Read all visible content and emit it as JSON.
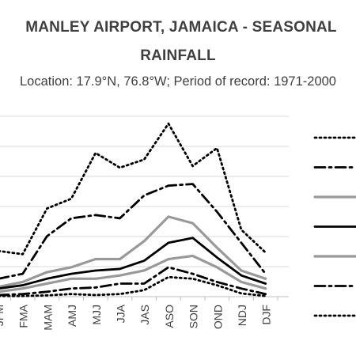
{
  "chart_data": {
    "type": "line",
    "title": "MANLEY AIRPORT, JAMAICA - SEASONAL RAINFALL",
    "title_lines": [
      "MANLEY AIRPORT, JAMAICA - SEASONAL",
      "RAINFALL"
    ],
    "subtitle": "Location: 17.9°N, 76.8°W; Period of record: 1971-2000",
    "categories": [
      "JFM",
      "FMA",
      "MAM",
      "AMJ",
      "MJJ",
      "JJA",
      "JAS",
      "ASO",
      "SON",
      "OND",
      "NDJ",
      "DJF"
    ],
    "ylim": [
      0,
      550
    ],
    "grid": true,
    "legend_position": "right",
    "series": [
      {
        "values": [
          140,
          130,
          270,
          300,
          440,
          395,
          420,
          530,
          400,
          455,
          205,
          135
        ],
        "color": "#000000",
        "style": "dotted"
      },
      {
        "values": [
          55,
          70,
          185,
          240,
          250,
          240,
          310,
          340,
          345,
          260,
          165,
          70
        ],
        "color": "#000000",
        "style": "dashdot"
      },
      {
        "values": [
          30,
          45,
          75,
          90,
          115,
          115,
          170,
          245,
          225,
          150,
          80,
          55
        ],
        "color": "#999999",
        "style": "solid"
      },
      {
        "values": [
          25,
          35,
          55,
          70,
          80,
          85,
          110,
          165,
          180,
          120,
          65,
          40
        ],
        "color": "#000000",
        "style": "solid"
      },
      {
        "values": [
          15,
          25,
          40,
          55,
          55,
          65,
          80,
          115,
          125,
          90,
          45,
          25
        ],
        "color": "#999999",
        "style": "solid"
      },
      {
        "values": [
          5,
          8,
          15,
          25,
          28,
          40,
          40,
          90,
          70,
          45,
          25,
          8
        ],
        "color": "#000000",
        "style": "dashdot"
      },
      {
        "values": [
          2,
          2,
          4,
          8,
          5,
          8,
          20,
          60,
          55,
          35,
          10,
          2
        ],
        "color": "#000000",
        "style": "dotted"
      }
    ]
  }
}
